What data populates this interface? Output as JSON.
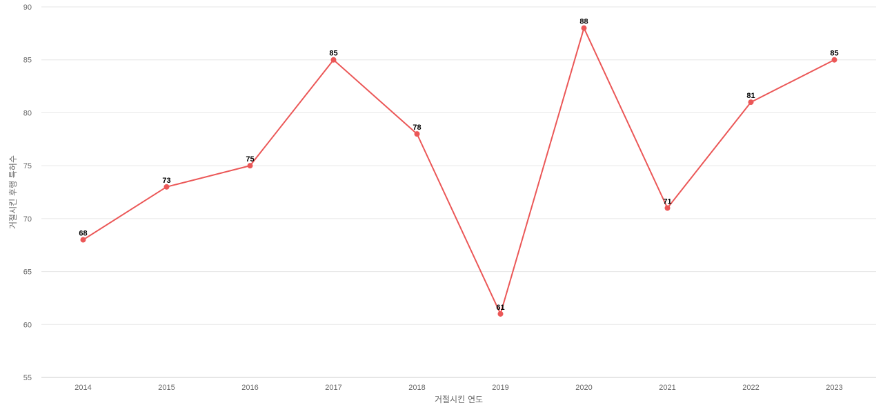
{
  "chart_data": {
    "type": "line",
    "title": "",
    "xlabel": "거절시킨 연도",
    "ylabel": "거절시킨 후행 특허수",
    "categories": [
      "2014",
      "2015",
      "2016",
      "2017",
      "2018",
      "2019",
      "2020",
      "2021",
      "2022",
      "2023"
    ],
    "series": [
      {
        "values": [
          68,
          73,
          75,
          85,
          78,
          61,
          88,
          71,
          81,
          85
        ],
        "color": "#eb5757"
      }
    ],
    "ylim": [
      55,
      90
    ],
    "yticks": [
      55,
      60,
      65,
      70,
      75,
      80,
      85,
      90
    ],
    "grid": true,
    "legend": "none",
    "data_labels": true
  }
}
